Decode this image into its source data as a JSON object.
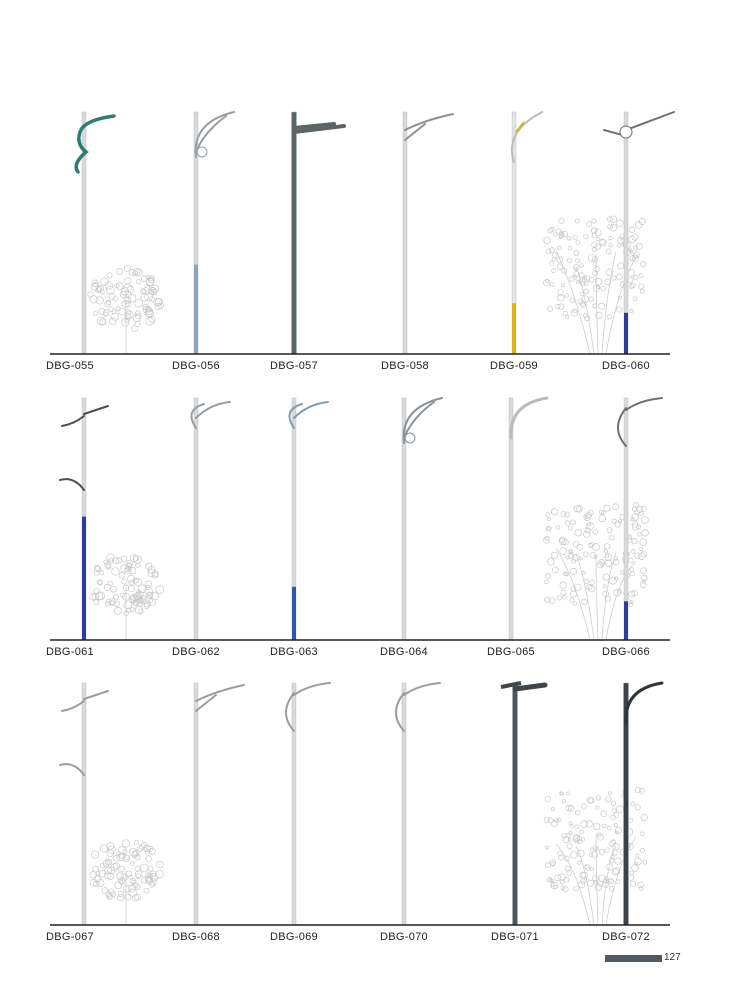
{
  "rows": [
    {
      "items": [
        {
          "label": "DBG-055",
          "pole_color": "#d8dadb",
          "arm": "s-curve",
          "arm_color": "#2f7c72",
          "band_color": null,
          "band_fraction": 0,
          "tree": "round"
        },
        {
          "label": "DBG-056",
          "pole_color": "#d8dadb",
          "arm": "hook-loop",
          "arm_color": "#9a9ea2",
          "band_color": "#8aa6bf",
          "band_fraction": 0.37,
          "tree": null
        },
        {
          "label": "DBG-057",
          "pole_color": "#5d6468",
          "arm": "double-bar",
          "arm_color": "#5d6468",
          "band_color": null,
          "band_fraction": 0,
          "tree": null
        },
        {
          "label": "DBG-058",
          "pole_color": "#d8dadb",
          "arm": "bracket",
          "arm_color": "#8d9296",
          "band_color": null,
          "band_fraction": 0,
          "tree": null
        },
        {
          "label": "DBG-059",
          "pole_color": "#e2e3e4",
          "arm": "sweep",
          "arm_color": "#b9bcbf",
          "band_color": "#e0b21e",
          "band_fraction": 0.21,
          "tree": null
        },
        {
          "label": "DBG-060",
          "pole_color": "#d8dadb",
          "arm": "ring",
          "arm_color": "#6e7276",
          "band_color": "#2c3e9a",
          "band_fraction": 0.17,
          "tree": "tall"
        }
      ]
    },
    {
      "items": [
        {
          "label": "DBG-061",
          "pole_color": "#d8dadb",
          "arm": "twin-level",
          "arm_color": "#4a4e52",
          "band_color": "#2c3e9a",
          "band_fraction": 0.51,
          "tree": "round"
        },
        {
          "label": "DBG-062",
          "pole_color": "#d8dadb",
          "arm": "double-sweep",
          "arm_color": "#9a9ea2",
          "band_color": null,
          "band_fraction": 0,
          "tree": null
        },
        {
          "label": "DBG-063",
          "pole_color": "#d8dadb",
          "arm": "double-sweep",
          "arm_color": "#7f9bb8",
          "band_color": "#2c5aa8",
          "band_fraction": 0.22,
          "tree": null
        },
        {
          "label": "DBG-064",
          "pole_color": "#d8dadb",
          "arm": "hook-loop",
          "arm_color": "#8d9296",
          "band_color": null,
          "band_fraction": 0,
          "tree": null
        },
        {
          "label": "DBG-065",
          "pole_color": "#d8dadb",
          "arm": "curve",
          "arm_color": "#b9bcbf",
          "band_color": null,
          "band_fraction": 0,
          "tree": null
        },
        {
          "label": "DBG-066",
          "pole_color": "#d8dadb",
          "arm": "crescent",
          "arm_color": "#6e7276",
          "band_color": "#2c3e9a",
          "band_fraction": 0.16,
          "tree": "tall"
        }
      ]
    },
    {
      "items": [
        {
          "label": "DBG-067",
          "pole_color": "#d8dadb",
          "arm": "twin-level",
          "arm_color": "#9a9ea2",
          "band_color": null,
          "band_fraction": 0,
          "tree": "round"
        },
        {
          "label": "DBG-068",
          "pole_color": "#d8dadb",
          "arm": "bracket",
          "arm_color": "#9a9ea2",
          "band_color": null,
          "band_fraction": 0,
          "tree": null
        },
        {
          "label": "DBG-069",
          "pole_color": "#d8dadb",
          "arm": "crescent",
          "arm_color": "#9a9ea2",
          "band_color": null,
          "band_fraction": 0,
          "tree": null
        },
        {
          "label": "DBG-070",
          "pole_color": "#d8dadb",
          "arm": "crescent",
          "arm_color": "#9a9ea2",
          "band_color": null,
          "band_fraction": 0,
          "tree": null
        },
        {
          "label": "DBG-071",
          "pole_color": "#4f5659",
          "arm": "flat-head",
          "arm_color": "#3f4548",
          "band_color": null,
          "band_fraction": 0,
          "tree": null
        },
        {
          "label": "DBG-072",
          "pole_color": "#3c4245",
          "arm": "curve",
          "arm_color": "#2f3437",
          "band_color": null,
          "band_fraction": 0,
          "tree": "tall"
        }
      ]
    }
  ],
  "page_number": "127",
  "page_bar_color": "#4f5b62"
}
